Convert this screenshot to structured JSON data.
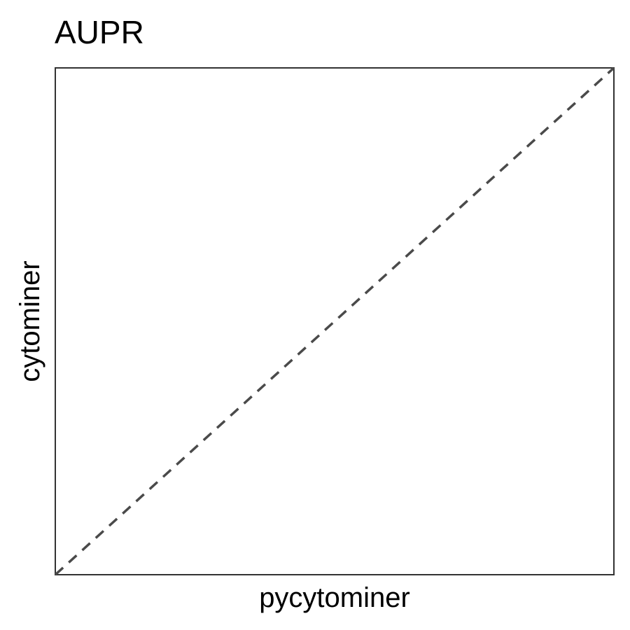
{
  "chart_data": {
    "type": "scatter",
    "title": "AUPR",
    "xlabel": "pycytominer",
    "ylabel": "cytominer",
    "xlim": [
      0,
      1
    ],
    "ylim": [
      0,
      1
    ],
    "grid": false,
    "series": [],
    "reference_line": {
      "x": [
        0,
        1
      ],
      "y": [
        0,
        1
      ],
      "style": "dashed",
      "color": "#4a4a4a"
    },
    "frame_color": "#333333"
  }
}
